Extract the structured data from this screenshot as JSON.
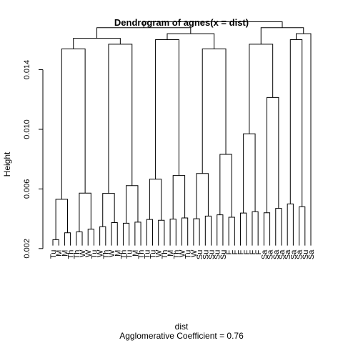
{
  "chart_data": {
    "type": "dendrogram",
    "title": "Dendrogram of  agnes(x = dist)",
    "xlabel": "dist",
    "ylabel": "Height",
    "subtitle": "Agglomerative Coefficient =  0.76",
    "ylim": [
      0.0018,
      0.0158
    ],
    "yticks": [
      0.002,
      0.006,
      0.01,
      0.014
    ],
    "ytick_labels": [
      "0.002",
      "0.006",
      "0.010",
      "0.014"
    ],
    "leaves": [
      "Tu",
      "M",
      "M",
      "Th",
      "Th",
      "W",
      "W",
      "Tu",
      "W",
      "Th",
      "W",
      "M",
      "Th",
      "Tu",
      "M",
      "Th",
      "Tu",
      "Tu",
      "W",
      "Th",
      "M",
      "Th",
      "W",
      "Tu",
      "W",
      "Su",
      "Su",
      "Su",
      "Su",
      "Su",
      "F",
      "F",
      "F",
      "F",
      "F",
      "F",
      "Sa",
      "Sa",
      "Sa",
      "Sa",
      "Sa",
      "Sa",
      "Sa",
      "Su",
      "Sa"
    ],
    "merges": [
      {
        "children": [
          11,
          12
        ],
        "height": 0.0036
      },
      {
        "children": [
          9,
          10
        ],
        "height": 0.003
      },
      {
        "children": [
          6,
          8
        ],
        "height": 0.0034
      },
      {
        "children": [
          0,
          3
        ],
        "height": 0.0039
      },
      {
        "children": [
          2,
          15
        ],
        "height": 0.0026
      },
      {
        "children": [
          13,
          14
        ],
        "height": 0.0041
      },
      {
        "children": [
          23,
          24
        ],
        "height": 0.0039
      },
      {
        "children": [
          17,
          18
        ],
        "height": 0.004
      },
      {
        "children": [
          20,
          21
        ],
        "height": 0.0037
      },
      {
        "children": [
          4,
          5
        ],
        "height": 0.003
      },
      {
        "children": [
          28,
          29
        ],
        "height": 0.0033
      },
      {
        "children": [
          25,
          26
        ],
        "height": 0.0048
      },
      {
        "children": [
          27,
          29
        ],
        "height": 0.0041
      },
      {
        "children": [
          30,
          31
        ],
        "height": 0.0041
      },
      {
        "children": [
          34,
          35
        ],
        "height": 0.0037
      },
      {
        "children": [
          37,
          38
        ],
        "height": 0.0043
      },
      {
        "children": [
          40,
          41
        ],
        "height": 0.0046
      },
      {
        "children": [
          42,
          43
        ],
        "height": 0.0057
      },
      {
        "children": [
          35,
          36
        ],
        "height": 0.0052
      },
      {
        "children": [
          31,
          32
        ],
        "height": 0.0064
      },
      {
        "children": [
          21,
          22
        ],
        "height": 0.0069
      },
      {
        "children": [
          19,
          20
        ],
        "height": 0.0039
      },
      {
        "children": [
          15,
          16
        ],
        "height": 0.0044
      },
      {
        "children": [
          1,
          2
        ],
        "height": 0.0043
      },
      {
        "children": [
          7,
          8
        ],
        "height": 0.0038
      },
      {
        "children": [
          24,
          28
        ],
        "height": 0.0061
      },
      {
        "children": [
          29,
          30
        ],
        "height": 0.0069
      },
      {
        "children": [
          36,
          37
        ],
        "height": 0.008
      },
      {
        "children": [
          17,
          21
        ],
        "height": 0.0048
      },
      {
        "children": [
          4,
          10
        ],
        "height": 0.0055
      },
      {
        "children": [
          26,
          33
        ],
        "height": 0.0097
      },
      {
        "children": [
          38,
          44
        ],
        "height": 0.0119
      },
      {
        "children": [
          12,
          40
        ],
        "height": 0.0154
      }
    ]
  }
}
